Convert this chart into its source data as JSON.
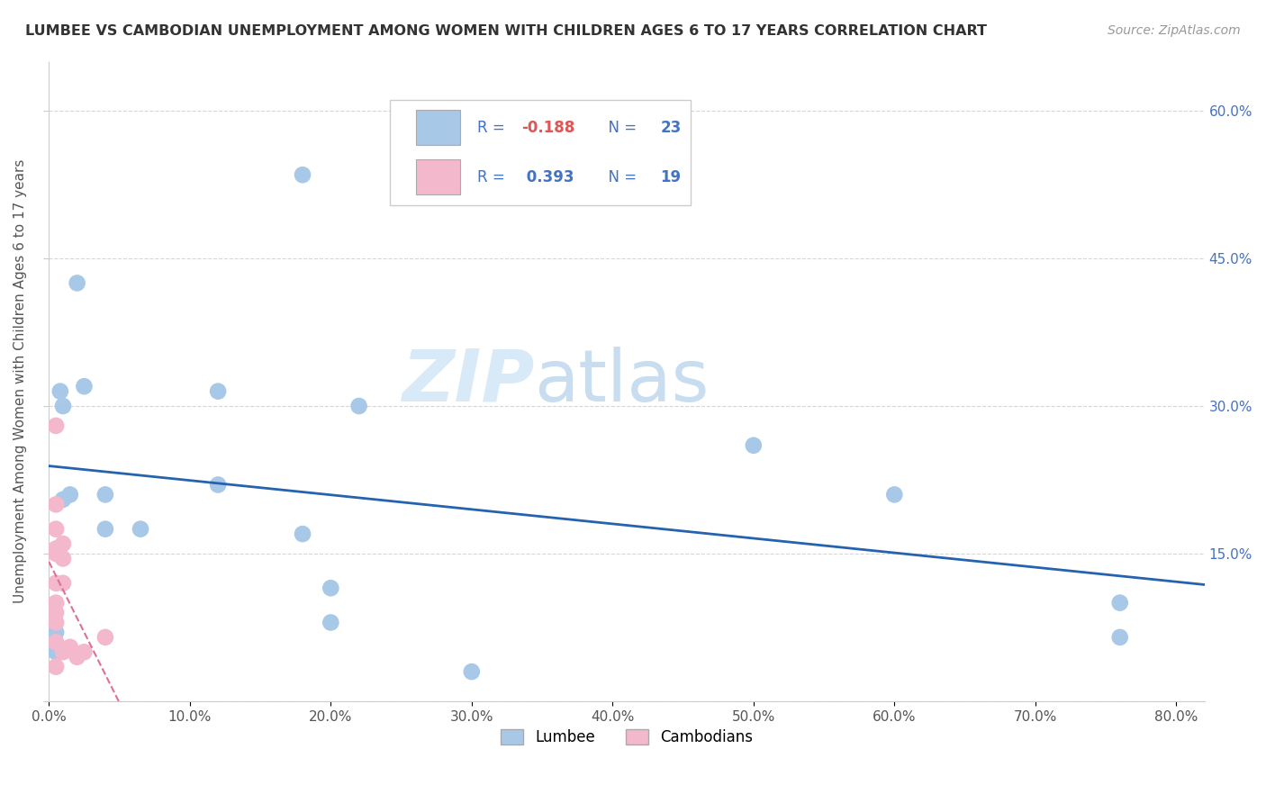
{
  "title": "LUMBEE VS CAMBODIAN UNEMPLOYMENT AMONG WOMEN WITH CHILDREN AGES 6 TO 17 YEARS CORRELATION CHART",
  "source": "Source: ZipAtlas.com",
  "ylabel": "Unemployment Among Women with Children Ages 6 to 17 years",
  "lumbee_x": [
    0.008,
    0.02,
    0.025,
    0.01,
    0.01,
    0.015,
    0.04,
    0.04,
    0.005,
    0.18,
    0.12,
    0.5,
    0.065,
    0.2,
    0.6,
    0.2,
    0.76,
    0.76,
    0.3,
    0.22,
    0.005,
    0.18,
    0.12
  ],
  "lumbee_y": [
    0.315,
    0.425,
    0.32,
    0.3,
    0.205,
    0.21,
    0.21,
    0.175,
    0.05,
    0.535,
    0.22,
    0.26,
    0.175,
    0.115,
    0.21,
    0.08,
    0.1,
    0.065,
    0.03,
    0.3,
    0.07,
    0.17,
    0.315
  ],
  "cambodian_x": [
    0.005,
    0.005,
    0.005,
    0.005,
    0.005,
    0.005,
    0.005,
    0.005,
    0.005,
    0.005,
    0.005,
    0.01,
    0.01,
    0.01,
    0.01,
    0.015,
    0.02,
    0.025,
    0.04
  ],
  "cambodian_y": [
    0.28,
    0.2,
    0.175,
    0.155,
    0.15,
    0.12,
    0.1,
    0.09,
    0.08,
    0.06,
    0.035,
    0.16,
    0.145,
    0.12,
    0.05,
    0.055,
    0.045,
    0.05,
    0.065
  ],
  "lumbee_color": "#a8c8e8",
  "cambodian_color": "#f4b8cc",
  "lumbee_line_color": "#2563ae",
  "cambodian_line_color": "#e07090",
  "lumbee_R": -0.188,
  "lumbee_N": 23,
  "cambodian_R": 0.393,
  "cambodian_N": 19,
  "xlim": [
    0.0,
    0.82
  ],
  "ylim": [
    0.0,
    0.65
  ],
  "xticks": [
    0.0,
    0.1,
    0.2,
    0.3,
    0.4,
    0.5,
    0.6,
    0.7,
    0.8
  ],
  "xticklabels": [
    "0.0%",
    "10.0%",
    "20.0%",
    "30.0%",
    "40.0%",
    "50.0%",
    "60.0%",
    "70.0%",
    "80.0%"
  ],
  "yticks": [
    0.0,
    0.15,
    0.3,
    0.45,
    0.6
  ],
  "yticklabels_right": [
    "",
    "15.0%",
    "30.0%",
    "45.0%",
    "60.0%"
  ],
  "watermark_zip": "ZIP",
  "watermark_atlas": "atlas",
  "background_color": "#ffffff",
  "legend_lumbee": "Lumbee",
  "legend_cambodian": "Cambodians"
}
